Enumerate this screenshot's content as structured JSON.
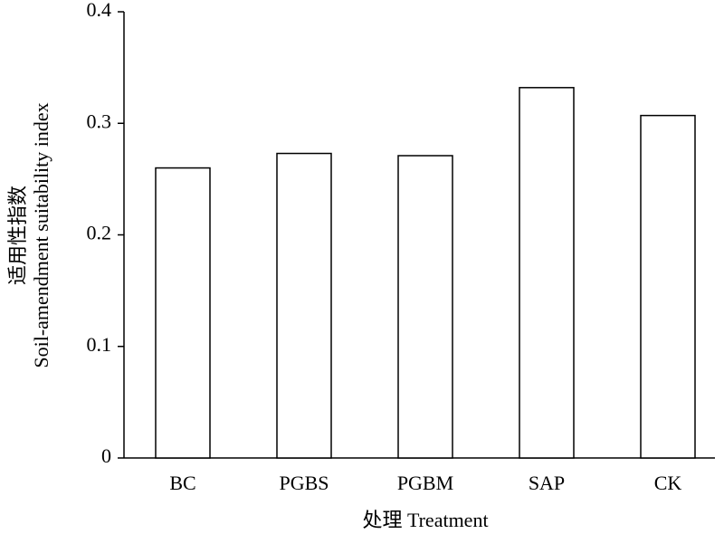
{
  "chart_data": {
    "type": "bar",
    "categories": [
      "BC",
      "PGBS",
      "PGBM",
      "SAP",
      "CK"
    ],
    "values": [
      0.26,
      0.273,
      0.271,
      0.332,
      0.307
    ],
    "color": "#ffffff",
    "ylabel": [
      "适用性指数",
      "Soil-amendment suitability index"
    ],
    "xlabel": "处理 Treatment",
    "ylim": [
      0,
      0.4
    ],
    "yticks": [
      0,
      0.1,
      0.2,
      0.3,
      0.4
    ],
    "grid": false
  }
}
